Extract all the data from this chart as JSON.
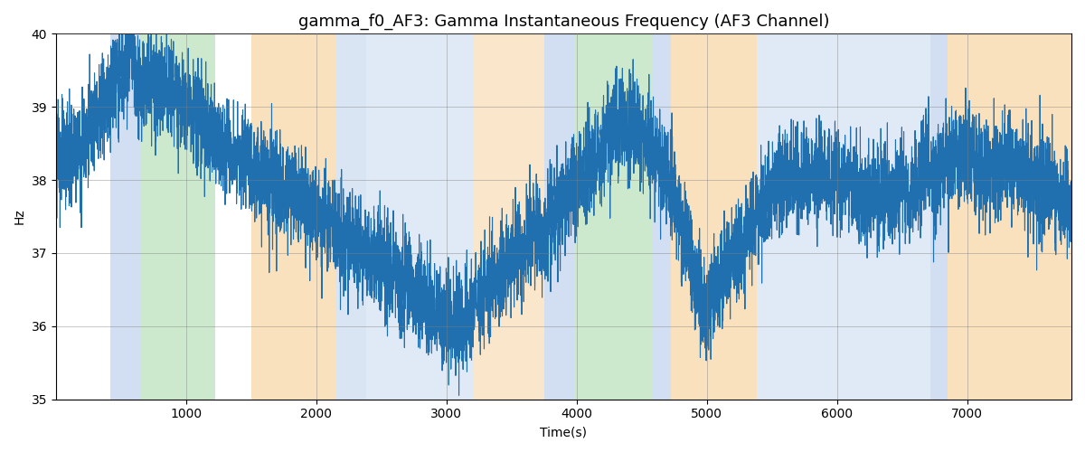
{
  "title": "gamma_f0_AF3: Gamma Instantaneous Frequency (AF3 Channel)",
  "xlabel": "Time(s)",
  "ylabel": "Hz",
  "xlim": [
    0,
    7800
  ],
  "ylim": [
    35,
    40
  ],
  "yticks": [
    35,
    36,
    37,
    38,
    39,
    40
  ],
  "xticks": [
    1000,
    2000,
    3000,
    4000,
    5000,
    6000,
    7000
  ],
  "line_color": "#2070b0",
  "line_width": 0.8,
  "bg_regions": [
    {
      "start": 420,
      "end": 650,
      "color": "#aec6e8",
      "alpha": 0.55
    },
    {
      "start": 650,
      "end": 1220,
      "color": "#90d090",
      "alpha": 0.45
    },
    {
      "start": 1500,
      "end": 2150,
      "color": "#f5c98a",
      "alpha": 0.55
    },
    {
      "start": 2150,
      "end": 2380,
      "color": "#aec6e8",
      "alpha": 0.45
    },
    {
      "start": 2380,
      "end": 3200,
      "color": "#aec6e8",
      "alpha": 0.38
    },
    {
      "start": 3200,
      "end": 3750,
      "color": "#f5c98a",
      "alpha": 0.45
    },
    {
      "start": 3750,
      "end": 3980,
      "color": "#aec6e8",
      "alpha": 0.55
    },
    {
      "start": 3980,
      "end": 4580,
      "color": "#90d090",
      "alpha": 0.45
    },
    {
      "start": 4580,
      "end": 4720,
      "color": "#aec6e8",
      "alpha": 0.55
    },
    {
      "start": 4720,
      "end": 5380,
      "color": "#f5c98a",
      "alpha": 0.55
    },
    {
      "start": 5380,
      "end": 6050,
      "color": "#aec6e8",
      "alpha": 0.38
    },
    {
      "start": 6050,
      "end": 6720,
      "color": "#aec6e8",
      "alpha": 0.38
    },
    {
      "start": 6720,
      "end": 6850,
      "color": "#aec6e8",
      "alpha": 0.55
    },
    {
      "start": 6850,
      "end": 7800,
      "color": "#f5c98a",
      "alpha": 0.55
    }
  ],
  "seed": 123,
  "n_points": 7800,
  "title_fontsize": 13
}
